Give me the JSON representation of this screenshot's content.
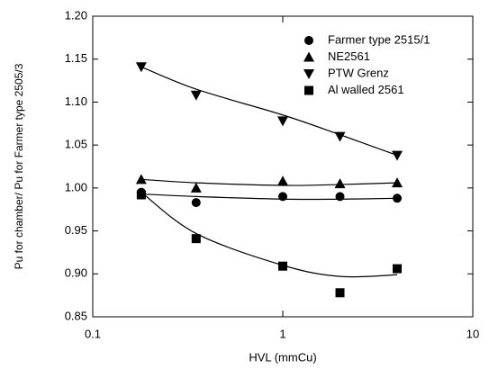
{
  "chart_data": {
    "type": "scatter",
    "x_label": "HVL (mmCu)",
    "y_label": "Pu for chamber/ Pu for Farmer type 2505/3",
    "x": [
      0.18,
      0.35,
      1,
      2,
      4
    ],
    "series": [
      {
        "name": "Farmer type 2515/1",
        "color": "#000000",
        "marker": "circle",
        "values": [
          0.995,
          0.983,
          0.99,
          0.99,
          0.988
        ],
        "fit": [
          0.993,
          0.99,
          0.987,
          0.987,
          0.988
        ]
      },
      {
        "name": "NE2561",
        "color": "#000000",
        "marker": "triangle-up",
        "values": [
          1.01,
          1.0,
          1.008,
          1.005,
          1.006
        ],
        "fit": [
          1.01,
          1.006,
          1.003,
          1.004,
          1.006
        ]
      },
      {
        "name": "PTW Grenz",
        "color": "#000000",
        "marker": "triangle-down",
        "values": [
          1.141,
          1.108,
          1.078,
          1.06,
          1.038
        ],
        "fit": [
          1.141,
          1.115,
          1.085,
          1.062,
          1.038
        ]
      },
      {
        "name": "Al walled 2561",
        "color": "#000000",
        "marker": "square",
        "values": [
          0.992,
          0.941,
          0.909,
          0.878,
          0.906
        ],
        "fit": [
          0.995,
          0.947,
          0.91,
          0.897,
          0.899
        ]
      }
    ],
    "xlim": [
      0.1,
      10
    ],
    "xticks": [
      0.1,
      1,
      10
    ],
    "xscale": "log",
    "ylim": [
      0.85,
      1.2
    ],
    "yticks": [
      {
        "value": 0.85,
        "label": "0.85"
      },
      {
        "value": 0.9,
        "label": "0.90"
      },
      {
        "value": 0.95,
        "label": "0.95"
      },
      {
        "value": 1.0,
        "label": "1.00"
      },
      {
        "value": 1.05,
        "label": "1.05"
      },
      {
        "value": 1.1,
        "label": "1.10"
      },
      {
        "value": 1.15,
        "label": "1.15"
      },
      {
        "value": 1.2,
        "label": "1.20"
      }
    ],
    "legend": "upper right",
    "grid": false
  }
}
